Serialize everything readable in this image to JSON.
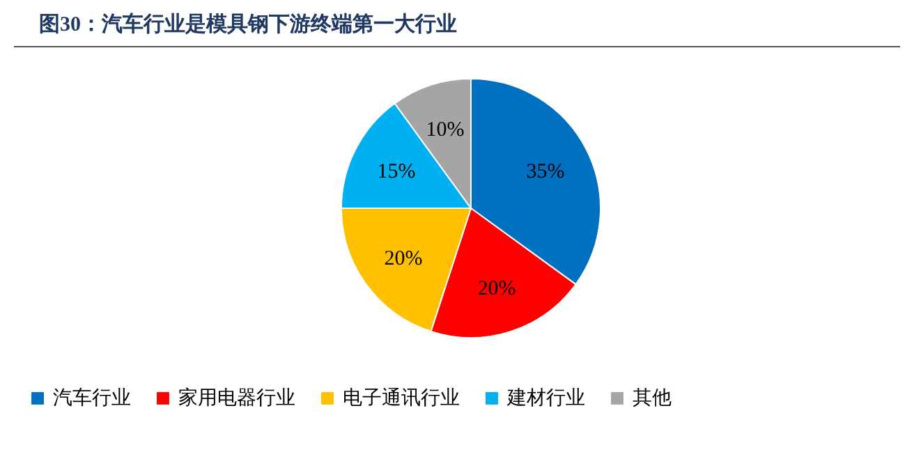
{
  "chart_data": {
    "type": "pie",
    "title": "图30：汽车行业是模具钢下游终端第一大行业",
    "categories": [
      "汽车行业",
      "家用电器行业",
      "电子通讯行业",
      "建材行业",
      "其他"
    ],
    "values": [
      35,
      20,
      20,
      15,
      10
    ],
    "colors": [
      "#0070c0",
      "#ff0000",
      "#ffc000",
      "#00b0f0",
      "#a5a5a5"
    ],
    "value_labels": [
      "35%",
      "20%",
      "20%",
      "15%",
      "10%"
    ],
    "legend": "bottom"
  }
}
